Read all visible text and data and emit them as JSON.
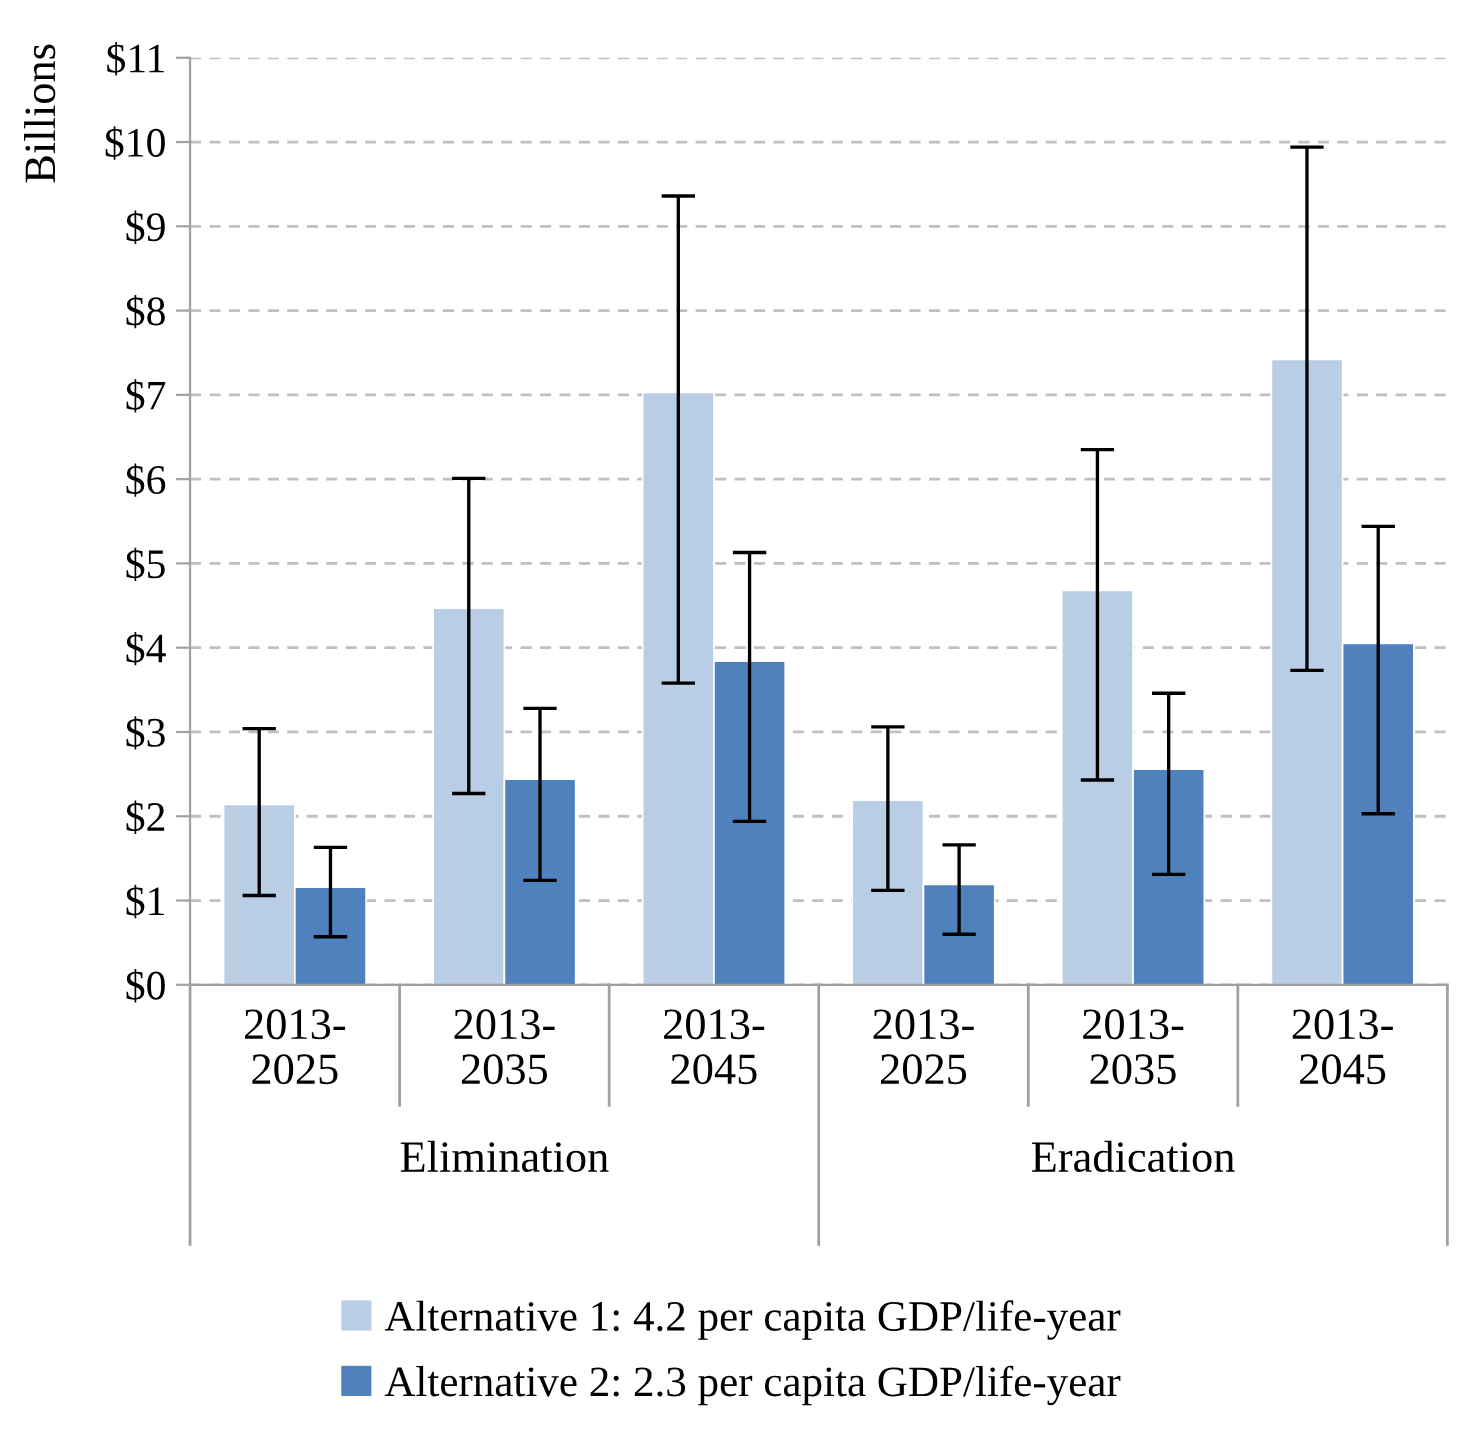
{
  "chart_data": {
    "type": "bar",
    "ylabel": "Billions",
    "categories": [
      "2013-2025",
      "2013-2035",
      "2013-2045",
      "2013-2025",
      "2013-2035",
      "2013-2045"
    ],
    "annotations": [
      "Elimination",
      "Eradication"
    ],
    "series": [
      {
        "name": "Alternative 1: 4.2 per capita GDP/life-year",
        "color": "#b9cde5",
        "values": [
          2.14,
          4.47,
          7.03,
          2.19,
          4.68,
          7.42
        ],
        "errors": [
          [
            1.06,
            3.04
          ],
          [
            2.27,
            6.01
          ],
          [
            3.58,
            9.36
          ],
          [
            1.12,
            3.06
          ],
          [
            2.43,
            6.35
          ],
          [
            3.73,
            9.94
          ]
        ]
      },
      {
        "name": "Alternative 2: 2.3 per capita GDP/life-year",
        "color": "#4f81bd",
        "values": [
          1.16,
          2.44,
          3.84,
          1.19,
          2.56,
          4.05
        ],
        "errors": [
          [
            0.57,
            1.63
          ],
          [
            1.24,
            3.28
          ],
          [
            1.94,
            5.13
          ],
          [
            0.6,
            1.66
          ],
          [
            1.31,
            3.46
          ],
          [
            2.03,
            5.44
          ]
        ]
      }
    ],
    "ylim": [
      0,
      11
    ],
    "yticks": [
      {
        "value": 0,
        "label": "$0"
      },
      {
        "value": 1,
        "label": "$1"
      },
      {
        "value": 2,
        "label": "$2"
      },
      {
        "value": 3,
        "label": "$3"
      },
      {
        "value": 4,
        "label": "$4"
      },
      {
        "value": 5,
        "label": "$5"
      },
      {
        "value": 6,
        "label": "$6"
      },
      {
        "value": 7,
        "label": "$7"
      },
      {
        "value": 8,
        "label": "$8"
      },
      {
        "value": 9,
        "label": "$9"
      },
      {
        "value": 10,
        "label": "$10"
      },
      {
        "value": 11,
        "label": "$11"
      }
    ],
    "grid": "y",
    "legend": "bottom",
    "line_style": "dashed"
  }
}
